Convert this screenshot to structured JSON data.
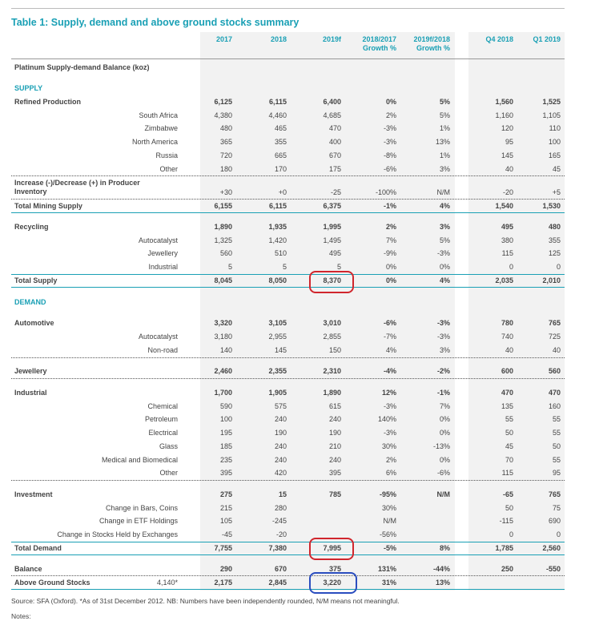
{
  "title": "Table 1: Supply, demand and above ground stocks summary",
  "table": {
    "columns": [
      [
        "2017"
      ],
      [
        "2018"
      ],
      [
        "2019f"
      ],
      [
        "2018/2017",
        "Growth %"
      ],
      [
        "2019f/2018",
        "Growth %"
      ],
      [
        "Q4 2018"
      ],
      [
        "Q1 2019"
      ]
    ],
    "rows": [
      {
        "label": "Platinum Supply-demand Balance (koz)"
      },
      {
        "label": "SUPPLY"
      },
      {
        "label": "Refined Production",
        "values": [
          "6,125",
          "6,115",
          "6,400",
          "0%",
          "5%",
          "1,560",
          "1,525"
        ]
      },
      {
        "label": "South Africa",
        "values": [
          "4,380",
          "4,460",
          "4,685",
          "2%",
          "5%",
          "1,160",
          "1,105"
        ]
      },
      {
        "label": "Zimbabwe",
        "values": [
          "480",
          "465",
          "470",
          "-3%",
          "1%",
          "120",
          "110"
        ]
      },
      {
        "label": "North America",
        "values": [
          "365",
          "355",
          "400",
          "-3%",
          "13%",
          "95",
          "100"
        ]
      },
      {
        "label": "Russia",
        "values": [
          "720",
          "665",
          "670",
          "-8%",
          "1%",
          "145",
          "165"
        ]
      },
      {
        "label": "Other",
        "values": [
          "180",
          "170",
          "175",
          "-6%",
          "3%",
          "40",
          "45"
        ]
      },
      {
        "label": "Increase (-)/Decrease (+) in Producer Inventory",
        "values": [
          "+30",
          "+0",
          "-25",
          "-100%",
          "N/M",
          "-20",
          "+5"
        ]
      },
      {
        "label": "Total Mining Supply",
        "values": [
          "6,155",
          "6,115",
          "6,375",
          "-1%",
          "4%",
          "1,540",
          "1,530"
        ]
      },
      {
        "label": "Recycling",
        "values": [
          "1,890",
          "1,935",
          "1,995",
          "2%",
          "3%",
          "495",
          "480"
        ]
      },
      {
        "label": "Autocatalyst",
        "values": [
          "1,325",
          "1,420",
          "1,495",
          "7%",
          "5%",
          "380",
          "355"
        ]
      },
      {
        "label": "Jewellery",
        "values": [
          "560",
          "510",
          "495",
          "-9%",
          "-3%",
          "115",
          "125"
        ]
      },
      {
        "label": "Industrial",
        "values": [
          "5",
          "5",
          "5",
          "0%",
          "0%",
          "0",
          "0"
        ]
      },
      {
        "label": "Total Supply",
        "values": [
          "8,045",
          "8,050",
          "8,370",
          "0%",
          "4%",
          "2,035",
          "2,010"
        ]
      },
      {
        "label": "DEMAND"
      },
      {
        "label": "Automotive",
        "values": [
          "3,320",
          "3,105",
          "3,010",
          "-6%",
          "-3%",
          "780",
          "765"
        ]
      },
      {
        "label": "Autocatalyst",
        "values": [
          "3,180",
          "2,955",
          "2,855",
          "-7%",
          "-3%",
          "740",
          "725"
        ]
      },
      {
        "label": "Non-road",
        "values": [
          "140",
          "145",
          "150",
          "4%",
          "3%",
          "40",
          "40"
        ]
      },
      {
        "label": "Jewellery",
        "values": [
          "2,460",
          "2,355",
          "2,310",
          "-4%",
          "-2%",
          "600",
          "560"
        ]
      },
      {
        "label": "Industrial",
        "values": [
          "1,700",
          "1,905",
          "1,890",
          "12%",
          "-1%",
          "470",
          "470"
        ]
      },
      {
        "label": "Chemical",
        "values": [
          "590",
          "575",
          "615",
          "-3%",
          "7%",
          "135",
          "160"
        ]
      },
      {
        "label": "Petroleum",
        "values": [
          "100",
          "240",
          "240",
          "140%",
          "0%",
          "55",
          "55"
        ]
      },
      {
        "label": "Electrical",
        "values": [
          "195",
          "190",
          "190",
          "-3%",
          "0%",
          "50",
          "55"
        ]
      },
      {
        "label": "Glass",
        "values": [
          "185",
          "240",
          "210",
          "30%",
          "-13%",
          "45",
          "50"
        ]
      },
      {
        "label": "Medical and Biomedical",
        "values": [
          "235",
          "240",
          "240",
          "2%",
          "0%",
          "70",
          "55"
        ]
      },
      {
        "label": "Other",
        "values": [
          "395",
          "420",
          "395",
          "6%",
          "-6%",
          "115",
          "95"
        ]
      },
      {
        "label": "Investment",
        "values": [
          "275",
          "15",
          "785",
          "-95%",
          "N/M",
          "-65",
          "765"
        ]
      },
      {
        "label": "Change in Bars, Coins",
        "values": [
          "215",
          "280",
          null,
          "30%",
          null,
          "50",
          "75"
        ]
      },
      {
        "label": "Change in ETF Holdings",
        "values": [
          "105",
          "-245",
          null,
          "N/M",
          null,
          "-115",
          "690"
        ]
      },
      {
        "label": "Change in Stocks Held by Exchanges",
        "values": [
          "-45",
          "-20",
          null,
          "-56%",
          null,
          "0",
          "0"
        ]
      },
      {
        "label": "Total Demand",
        "values": [
          "7,755",
          "7,380",
          "7,995",
          "-5%",
          "8%",
          "1,785",
          "2,560"
        ]
      },
      {
        "label": "Balance",
        "values": [
          "290",
          "670",
          "375",
          "131%",
          "-44%",
          "250",
          "-550"
        ]
      },
      {
        "label": "Above Ground Stocks",
        "note": "4,140*",
        "values": [
          "2,175",
          "2,845",
          "3,220",
          "31%",
          "13%",
          null,
          null
        ]
      }
    ]
  },
  "footnote": "Source: SFA (Oxford). *As of 31st December 2012. NB: Numbers have been independently rounded, N/M means not meaningful.",
  "notes": "Notes:"
}
